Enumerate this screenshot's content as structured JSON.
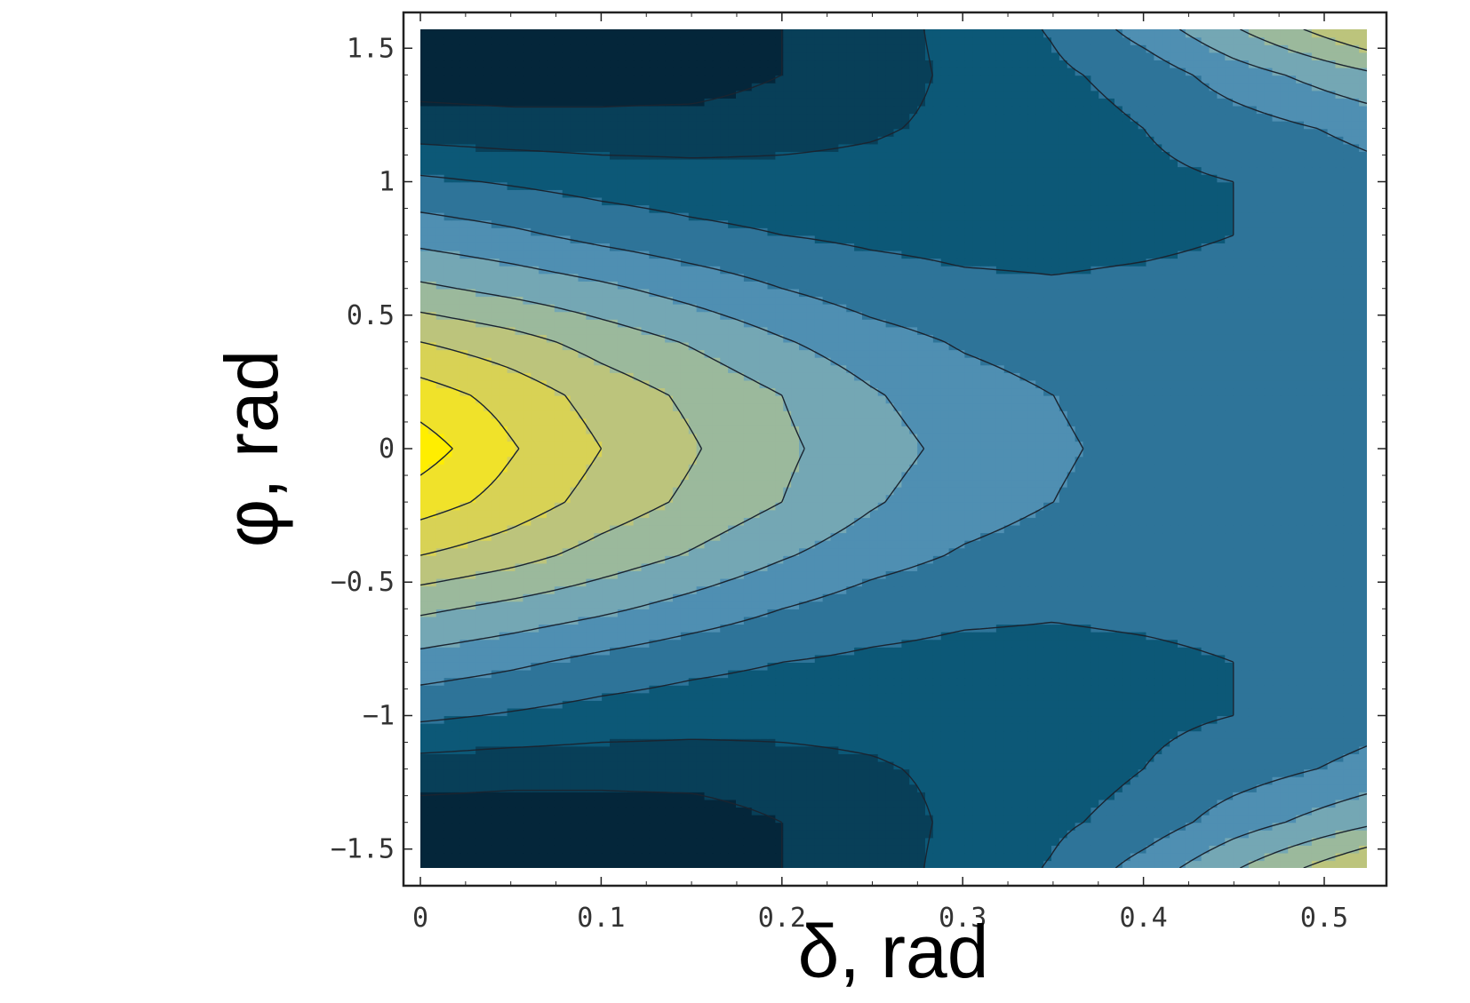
{
  "chart_data": {
    "type": "heatmap",
    "subtype": "filled-contour",
    "title": "",
    "xlabel": "δ, rad",
    "ylabel": "φ, rad",
    "xlim": [
      0,
      0.5236
    ],
    "ylim": [
      -1.5708,
      1.5708
    ],
    "x_ticks": [
      {
        "value": 0,
        "label": "0"
      },
      {
        "value": 0.1,
        "label": "0.1"
      },
      {
        "value": 0.2,
        "label": "0.2"
      },
      {
        "value": 0.3,
        "label": "0.3"
      },
      {
        "value": 0.4,
        "label": "0.4"
      },
      {
        "value": 0.5,
        "label": "0.5"
      }
    ],
    "y_ticks": [
      {
        "value": -1.5,
        "label": "−1.5"
      },
      {
        "value": -1,
        "label": "−1"
      },
      {
        "value": -0.5,
        "label": "−0.5"
      },
      {
        "value": 0,
        "label": "0"
      },
      {
        "value": 0.5,
        "label": "0.5"
      },
      {
        "value": 1,
        "label": "1"
      },
      {
        "value": 1.5,
        "label": "1.5"
      }
    ],
    "grid": false,
    "legend": "none",
    "colormap": [
      "#04263a",
      "#083f58",
      "#0c5877",
      "#2e7499",
      "#4f8fb2",
      "#74a7b4",
      "#9bb99c",
      "#bcc47c",
      "#d8d255",
      "#f0e22a",
      "#ffee00"
    ],
    "contour_levels": [
      1,
      2,
      3,
      4,
      5,
      6,
      7,
      8,
      9,
      10
    ],
    "field": {
      "x": [
        0,
        0.05,
        0.1,
        0.15,
        0.2,
        0.25,
        0.3,
        0.35,
        0.4,
        0.45,
        0.5236
      ],
      "y": [
        -1.5708,
        -1.4,
        -1.2,
        -1.0,
        -0.8,
        -0.6,
        -0.4,
        -0.2,
        0,
        0.2,
        0.4,
        0.6,
        0.8,
        1.0,
        1.2,
        1.4,
        1.5708
      ],
      "z": [
        [
          0.6,
          0.5,
          0.5,
          0.5,
          1.0,
          1.6,
          2.3,
          3.1,
          4.4,
          5.9,
          8.0
        ],
        [
          0.5,
          0.4,
          0.4,
          0.4,
          1.0,
          1.6,
          2.2,
          2.8,
          3.4,
          4.5,
          5.8
        ],
        [
          1.5,
          1.4,
          1.4,
          1.5,
          1.7,
          1.9,
          2.2,
          2.5,
          3.0,
          3.5,
          4.3
        ],
        [
          3.2,
          2.9,
          2.6,
          2.4,
          2.3,
          2.3,
          2.4,
          2.6,
          2.8,
          3.0,
          3.6
        ],
        [
          4.6,
          4.2,
          3.7,
          3.3,
          3.0,
          2.8,
          2.7,
          2.7,
          2.8,
          3.0,
          3.5
        ],
        [
          6.2,
          5.7,
          5.2,
          4.6,
          4.0,
          3.5,
          3.2,
          3.1,
          3.2,
          3.3,
          3.6
        ],
        [
          8.0,
          7.4,
          6.6,
          5.9,
          5.1,
          4.4,
          3.9,
          3.6,
          3.5,
          3.5,
          3.6
        ],
        [
          9.5,
          8.6,
          7.6,
          6.8,
          6.0,
          5.1,
          4.4,
          4.0,
          3.7,
          3.6,
          3.6
        ],
        [
          10.5,
          9.1,
          8.0,
          7.1,
          6.2,
          5.4,
          4.7,
          4.1,
          3.8,
          3.6,
          3.6
        ],
        [
          9.5,
          8.6,
          7.6,
          6.8,
          6.0,
          5.1,
          4.4,
          4.0,
          3.7,
          3.6,
          3.6
        ],
        [
          8.0,
          7.4,
          6.6,
          5.9,
          5.1,
          4.4,
          3.9,
          3.6,
          3.5,
          3.5,
          3.6
        ],
        [
          6.2,
          5.7,
          5.2,
          4.6,
          4.0,
          3.5,
          3.2,
          3.1,
          3.2,
          3.3,
          3.6
        ],
        [
          4.6,
          4.2,
          3.7,
          3.3,
          3.0,
          2.8,
          2.7,
          2.7,
          2.8,
          3.0,
          3.5
        ],
        [
          3.2,
          2.9,
          2.6,
          2.4,
          2.3,
          2.3,
          2.4,
          2.6,
          2.8,
          3.0,
          3.6
        ],
        [
          1.5,
          1.4,
          1.4,
          1.5,
          1.7,
          1.9,
          2.2,
          2.5,
          3.0,
          3.5,
          4.3
        ],
        [
          0.5,
          0.4,
          0.4,
          0.4,
          1.0,
          1.6,
          2.2,
          2.8,
          3.4,
          4.5,
          5.8
        ],
        [
          0.6,
          0.5,
          0.5,
          0.5,
          1.0,
          1.6,
          2.3,
          3.1,
          4.4,
          5.9,
          8.0
        ]
      ]
    }
  }
}
